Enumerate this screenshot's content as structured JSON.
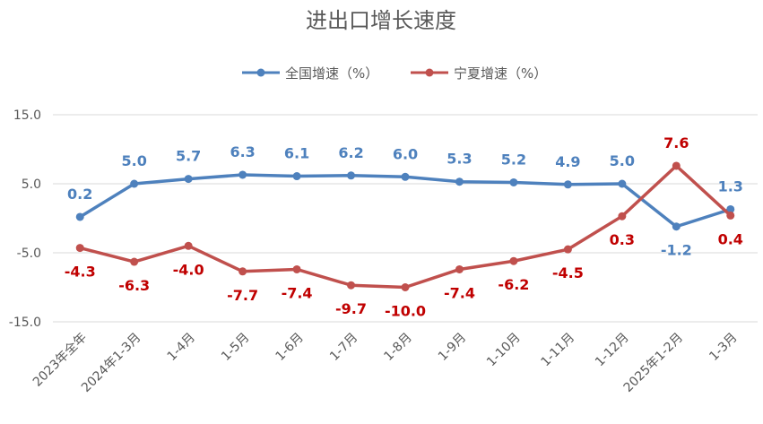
{
  "chart_data": {
    "type": "line",
    "title": "进出口增长速度",
    "categories": [
      "2023年全年",
      "2024年1-3月",
      "1-4月",
      "1-5月",
      "1-6月",
      "1-7月",
      "1-8月",
      "1-9月",
      "1-10月",
      "1-11月",
      "1-12月",
      "2025年1-2月",
      "1-3月"
    ],
    "series": [
      {
        "name": "全国增速（%）",
        "color": "#4e81bd",
        "values": [
          0.2,
          5.0,
          5.7,
          6.3,
          6.1,
          6.2,
          6.0,
          5.3,
          5.2,
          4.9,
          5.0,
          -1.2,
          1.3
        ],
        "labels": [
          "0.2",
          "5.0",
          "5.7",
          "6.3",
          "6.1",
          "6.2",
          "6.0",
          "5.3",
          "5.2",
          "4.9",
          "5.0",
          "-1.2",
          "1.3"
        ]
      },
      {
        "name": "宁夏增速（%）",
        "color": "#c0504d",
        "label_color": "#c00000",
        "values": [
          -4.3,
          -6.3,
          -4.0,
          -7.7,
          -7.4,
          -9.7,
          -10.0,
          -7.4,
          -6.2,
          -4.5,
          0.3,
          7.6,
          0.4
        ],
        "labels": [
          "-4.3",
          "-6.3",
          "-4.0",
          "-7.7",
          "-7.4",
          "-9.7",
          "-10.0",
          "-7.4",
          "-6.2",
          "-4.5",
          "0.3",
          "7.6",
          "0.4"
        ]
      }
    ],
    "y_ticks": [
      "15.0",
      "5.0",
      "-5.0",
      "-15.0"
    ],
    "y_tick_values": [
      15,
      5,
      -5,
      -15
    ],
    "ylim": [
      -15,
      15
    ],
    "grid": true,
    "legend": "top-center"
  }
}
